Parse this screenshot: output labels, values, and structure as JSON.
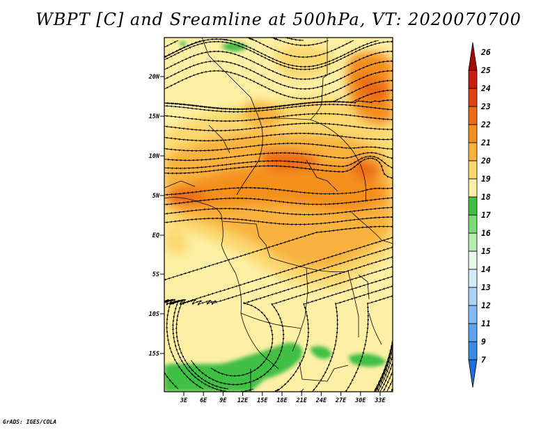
{
  "title": "WBPT [C] and Sreamline at 500hPa, VT: 2020070700",
  "credit": "GrADS: IGES/COLA",
  "map": {
    "lat_labels": [
      "20N",
      "15N",
      "10N",
      "5N",
      "EQ",
      "5S",
      "10S",
      "15S"
    ],
    "lon_labels": [
      "3E",
      "6E",
      "9E",
      "12E",
      "15E",
      "18E",
      "21E",
      "24E",
      "27E",
      "30E",
      "33E"
    ]
  },
  "colorbar": {
    "labels": [
      "7",
      "9",
      "11",
      "12",
      "13",
      "14",
      "15",
      "16",
      "17",
      "18",
      "19",
      "20",
      "21",
      "22",
      "23",
      "24",
      "25",
      "26"
    ],
    "colors": [
      "#1f6fd8",
      "#3c8ae8",
      "#5fa3f0",
      "#82bbf5",
      "#a9d3f8",
      "#d2ecfb",
      "#e8fbe8",
      "#b8ecb0",
      "#7fd87a",
      "#3fbf44",
      "#fdf0a4",
      "#fbd870",
      "#f8b23c",
      "#f48f1c",
      "#ec6a14",
      "#e0400e",
      "#cc1d0c",
      "#a80808"
    ]
  }
}
